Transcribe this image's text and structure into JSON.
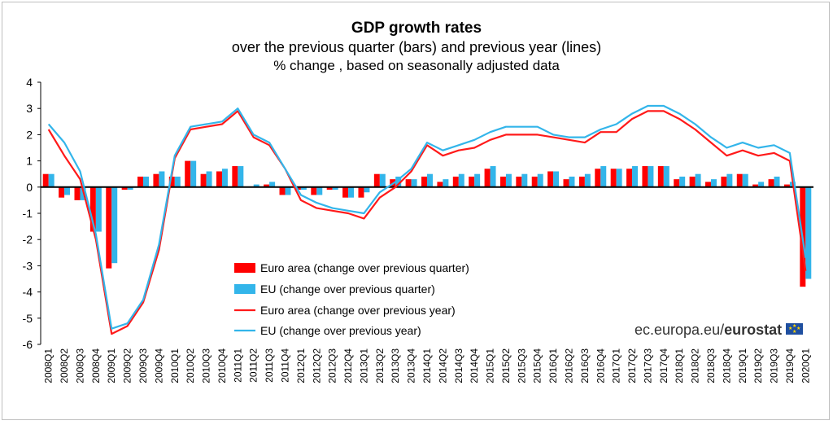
{
  "chart_data": {
    "type": "bar",
    "title": "GDP growth rates",
    "subtitle": "over the previous quarter (bars) and previous year (lines)",
    "subtitle2": "% change , based on seasonally adjusted data",
    "ylim": [
      -6,
      4
    ],
    "yticks": [
      4,
      3,
      2,
      1,
      0,
      -1,
      -2,
      -3,
      -4,
      -5,
      -6
    ],
    "categories": [
      "2008Q1",
      "2008Q2",
      "2008Q3",
      "2008Q4",
      "2009Q1",
      "2009Q2",
      "2009Q3",
      "2009Q4",
      "2010Q1",
      "2010Q2",
      "2010Q3",
      "2010Q4",
      "2011Q1",
      "2011Q2",
      "2011Q3",
      "2011Q4",
      "2012Q1",
      "2012Q2",
      "2012Q3",
      "2012Q4",
      "2013Q1",
      "2013Q2",
      "2013Q3",
      "2013Q4",
      "2014Q1",
      "2014Q2",
      "2014Q3",
      "2014Q4",
      "2015Q1",
      "2015Q2",
      "2015Q3",
      "2015Q4",
      "2016Q1",
      "2016Q2",
      "2016Q3",
      "2016Q4",
      "2017Q1",
      "2017Q2",
      "2017Q3",
      "2017Q4",
      "2018Q1",
      "2018Q2",
      "2018Q3",
      "2018Q4",
      "2019Q1",
      "2019Q2",
      "2019Q3",
      "2019Q4",
      "2020Q1"
    ],
    "series": [
      {
        "name": "Euro area (change over previous quarter)",
        "kind": "bar",
        "color": "#ff0000",
        "values": [
          0.5,
          -0.4,
          -0.5,
          -1.7,
          -3.1,
          -0.1,
          0.4,
          0.5,
          0.4,
          1.0,
          0.5,
          0.6,
          0.8,
          0.0,
          0.1,
          -0.3,
          -0.1,
          -0.3,
          -0.1,
          -0.4,
          -0.4,
          0.5,
          0.3,
          0.3,
          0.4,
          0.2,
          0.4,
          0.4,
          0.7,
          0.4,
          0.4,
          0.4,
          0.6,
          0.3,
          0.4,
          0.7,
          0.7,
          0.7,
          0.8,
          0.8,
          0.3,
          0.4,
          0.2,
          0.4,
          0.5,
          0.1,
          0.3,
          0.1,
          -3.8
        ]
      },
      {
        "name": "EU (change over previous quarter)",
        "kind": "bar",
        "color": "#33b5ea",
        "values": [
          0.5,
          -0.3,
          -0.5,
          -1.7,
          -2.9,
          -0.1,
          0.4,
          0.6,
          0.4,
          1.0,
          0.6,
          0.7,
          0.8,
          0.1,
          0.2,
          -0.3,
          -0.1,
          -0.3,
          -0.1,
          -0.4,
          -0.2,
          0.5,
          0.4,
          0.3,
          0.5,
          0.3,
          0.5,
          0.5,
          0.8,
          0.5,
          0.5,
          0.5,
          0.6,
          0.4,
          0.5,
          0.8,
          0.7,
          0.8,
          0.8,
          0.8,
          0.4,
          0.5,
          0.3,
          0.5,
          0.5,
          0.2,
          0.4,
          0.2,
          -3.5
        ]
      },
      {
        "name": "Euro area (change over previous year)",
        "kind": "line",
        "color": "#ff1a1a",
        "values": [
          2.2,
          1.2,
          0.3,
          -2.0,
          -5.6,
          -5.3,
          -4.4,
          -2.4,
          1.1,
          2.2,
          2.3,
          2.4,
          2.9,
          1.9,
          1.6,
          0.7,
          -0.5,
          -0.8,
          -0.9,
          -1.0,
          -1.2,
          -0.4,
          0.0,
          0.6,
          1.6,
          1.2,
          1.4,
          1.5,
          1.8,
          2.0,
          2.0,
          2.0,
          1.9,
          1.8,
          1.7,
          2.1,
          2.1,
          2.6,
          2.9,
          2.9,
          2.6,
          2.2,
          1.7,
          1.2,
          1.4,
          1.2,
          1.3,
          1.0,
          -3.2
        ]
      },
      {
        "name": "EU (change over previous year)",
        "kind": "line",
        "color": "#33b5ea",
        "values": [
          2.4,
          1.7,
          0.6,
          -1.8,
          -5.4,
          -5.2,
          -4.3,
          -2.2,
          1.2,
          2.3,
          2.4,
          2.5,
          3.0,
          2.0,
          1.7,
          0.7,
          -0.3,
          -0.6,
          -0.8,
          -0.9,
          -1.0,
          -0.2,
          0.2,
          0.7,
          1.7,
          1.4,
          1.6,
          1.8,
          2.1,
          2.3,
          2.3,
          2.3,
          2.0,
          1.9,
          1.9,
          2.2,
          2.4,
          2.8,
          3.1,
          3.1,
          2.8,
          2.4,
          1.9,
          1.5,
          1.7,
          1.5,
          1.6,
          1.3,
          -2.7
        ]
      }
    ],
    "legend_position": "bottom-center",
    "grid": false
  },
  "source": {
    "text": "ec.europa.eu/",
    "brand": "eurostat"
  }
}
